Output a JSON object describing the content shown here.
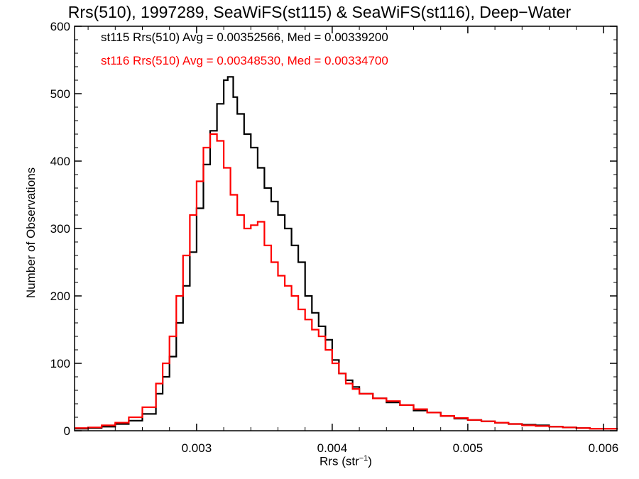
{
  "chart_data": {
    "type": "line",
    "subtype": "step-histogram",
    "title": "Rrs(510), 1997289, SeaWiFS(st115) & SeaWiFS(st116), Deep−Water",
    "xlabel": "Rrs (str",
    "xlabel_superscript": "−1",
    "xlabel_suffix": ")",
    "ylabel": "Number of Observations",
    "xlim": [
      0.0021,
      0.0061
    ],
    "ylim": [
      0,
      600
    ],
    "xticks": [
      0.003,
      0.004,
      0.005,
      0.006
    ],
    "xtick_labels": [
      "0.003",
      "0.004",
      "0.005",
      "0.006"
    ],
    "yticks": [
      0,
      100,
      200,
      300,
      400,
      500,
      600
    ],
    "ytick_labels": [
      "0",
      "100",
      "200",
      "300",
      "400",
      "500",
      "600"
    ],
    "grid": false,
    "legend_position": "top-left",
    "series": [
      {
        "name": "st115 Rrs(510) Avg = 0.00352566, Med = 0.00339200",
        "color": "#000000",
        "points": [
          [
            0.0021,
            3
          ],
          [
            0.0022,
            4
          ],
          [
            0.0023,
            6
          ],
          [
            0.0024,
            10
          ],
          [
            0.0025,
            15
          ],
          [
            0.0026,
            25
          ],
          [
            0.0027,
            55
          ],
          [
            0.00275,
            80
          ],
          [
            0.0028,
            110
          ],
          [
            0.00285,
            160
          ],
          [
            0.0029,
            215
          ],
          [
            0.00295,
            265
          ],
          [
            0.003,
            330
          ],
          [
            0.00305,
            395
          ],
          [
            0.0031,
            445
          ],
          [
            0.00315,
            485
          ],
          [
            0.0032,
            520
          ],
          [
            0.00323,
            525
          ],
          [
            0.00327,
            495
          ],
          [
            0.0033,
            470
          ],
          [
            0.00335,
            440
          ],
          [
            0.0034,
            420
          ],
          [
            0.00345,
            390
          ],
          [
            0.0035,
            360
          ],
          [
            0.00355,
            340
          ],
          [
            0.0036,
            320
          ],
          [
            0.00365,
            300
          ],
          [
            0.0037,
            275
          ],
          [
            0.00375,
            250
          ],
          [
            0.0038,
            200
          ],
          [
            0.00385,
            175
          ],
          [
            0.0039,
            155
          ],
          [
            0.00395,
            135
          ],
          [
            0.004,
            105
          ],
          [
            0.00405,
            85
          ],
          [
            0.0041,
            75
          ],
          [
            0.00415,
            65
          ],
          [
            0.0042,
            55
          ],
          [
            0.0043,
            48
          ],
          [
            0.0044,
            42
          ],
          [
            0.0045,
            38
          ],
          [
            0.0046,
            30
          ],
          [
            0.0047,
            27
          ],
          [
            0.0048,
            22
          ],
          [
            0.0049,
            18
          ],
          [
            0.005,
            16
          ],
          [
            0.0051,
            14
          ],
          [
            0.0052,
            12
          ],
          [
            0.0053,
            10
          ],
          [
            0.0054,
            9
          ],
          [
            0.0055,
            8
          ],
          [
            0.0056,
            6
          ],
          [
            0.0057,
            5
          ],
          [
            0.0058,
            4
          ],
          [
            0.0059,
            3
          ],
          [
            0.006,
            3
          ],
          [
            0.0061,
            2
          ]
        ]
      },
      {
        "name": "st116 Rrs(510) Avg = 0.00348530, Med = 0.00334700",
        "color": "#ff0000",
        "points": [
          [
            0.0021,
            4
          ],
          [
            0.0022,
            5
          ],
          [
            0.0023,
            8
          ],
          [
            0.0024,
            12
          ],
          [
            0.0025,
            20
          ],
          [
            0.0026,
            35
          ],
          [
            0.0027,
            70
          ],
          [
            0.00275,
            100
          ],
          [
            0.0028,
            140
          ],
          [
            0.00285,
            200
          ],
          [
            0.0029,
            260
          ],
          [
            0.00295,
            320
          ],
          [
            0.003,
            370
          ],
          [
            0.00305,
            420
          ],
          [
            0.0031,
            440
          ],
          [
            0.00315,
            430
          ],
          [
            0.0032,
            390
          ],
          [
            0.00325,
            350
          ],
          [
            0.0033,
            320
          ],
          [
            0.00335,
            300
          ],
          [
            0.0034,
            305
          ],
          [
            0.00345,
            310
          ],
          [
            0.0035,
            275
          ],
          [
            0.00355,
            250
          ],
          [
            0.0036,
            230
          ],
          [
            0.00365,
            215
          ],
          [
            0.0037,
            200
          ],
          [
            0.00375,
            180
          ],
          [
            0.0038,
            165
          ],
          [
            0.00385,
            150
          ],
          [
            0.0039,
            140
          ],
          [
            0.00395,
            120
          ],
          [
            0.004,
            100
          ],
          [
            0.00405,
            85
          ],
          [
            0.0041,
            70
          ],
          [
            0.00415,
            62
          ],
          [
            0.0042,
            55
          ],
          [
            0.0043,
            48
          ],
          [
            0.0044,
            44
          ],
          [
            0.0045,
            38
          ],
          [
            0.0046,
            32
          ],
          [
            0.0047,
            27
          ],
          [
            0.0048,
            22
          ],
          [
            0.0049,
            19
          ],
          [
            0.005,
            16
          ],
          [
            0.0051,
            14
          ],
          [
            0.0052,
            12
          ],
          [
            0.0053,
            10
          ],
          [
            0.0054,
            8
          ],
          [
            0.0055,
            7
          ],
          [
            0.0056,
            6
          ],
          [
            0.0057,
            5
          ],
          [
            0.0058,
            4
          ],
          [
            0.0059,
            3
          ],
          [
            0.006,
            3
          ],
          [
            0.0061,
            2
          ]
        ]
      }
    ]
  }
}
